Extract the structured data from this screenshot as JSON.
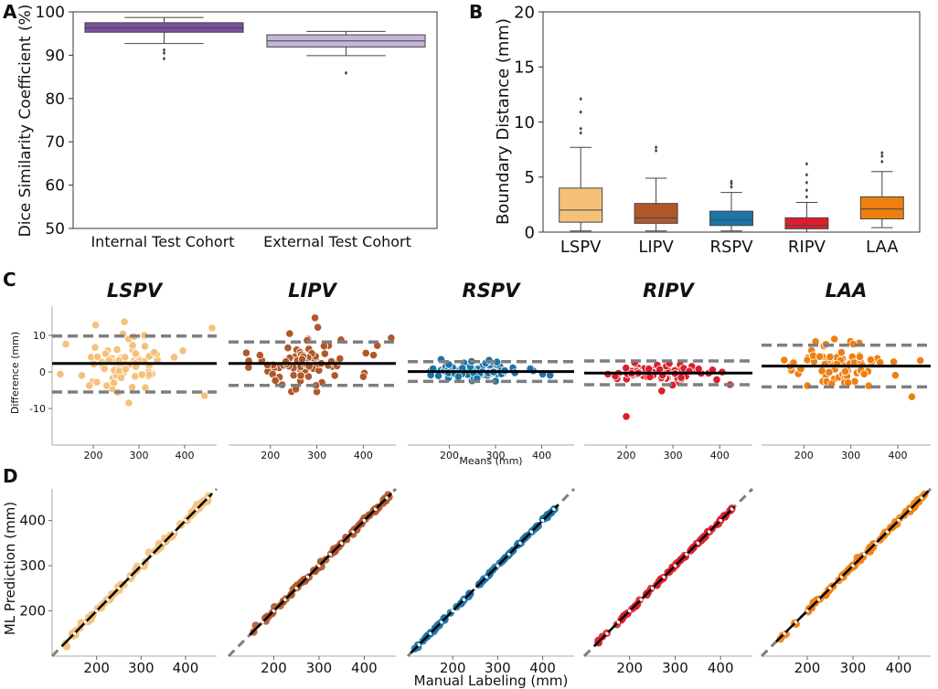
{
  "panels": {
    "a": "A",
    "b": "B",
    "c": "C",
    "d": "D"
  },
  "palette": {
    "LSPV": "#f5c17a",
    "LIPV": "#b0582a",
    "RSPV": "#1a75a8",
    "RIPV": "#dc1e2e",
    "LAA": "#ee800f",
    "internal": "#7a52a0",
    "external": "#c5b4da",
    "limits": "#7f7f7f",
    "mean": "#000000"
  },
  "chart_data": [
    {
      "id": "A",
      "type": "box",
      "ylabel": "Dice Similarity Coefficient (%)",
      "ylim": [
        50,
        100
      ],
      "yticks": [
        50,
        60,
        70,
        80,
        90,
        100
      ],
      "categories": [
        "Internal Test Cohort",
        "External Test Cohort"
      ],
      "boxes": [
        {
          "name": "Internal Test Cohort",
          "whisker_low": 92.7,
          "q1": 95.3,
          "median": 96.3,
          "q3": 97.5,
          "whisker_high": 98.7,
          "outliers": [
            91.2,
            90.5,
            89.2
          ]
        },
        {
          "name": "External Test Cohort",
          "whisker_low": 89.9,
          "q1": 91.9,
          "median": 93.3,
          "q3": 94.7,
          "whisker_high": 95.5,
          "outliers": [
            85.9
          ]
        }
      ]
    },
    {
      "id": "B",
      "type": "box",
      "ylabel": "Boundary Distance (mm)",
      "ylim": [
        0,
        20
      ],
      "yticks": [
        0,
        5,
        10,
        15,
        20
      ],
      "categories": [
        "LSPV",
        "LIPV",
        "RSPV",
        "RIPV",
        "LAA"
      ],
      "boxes": [
        {
          "name": "LSPV",
          "whisker_low": 0.1,
          "q1": 0.9,
          "median": 2.0,
          "q3": 4.0,
          "whisker_high": 7.7,
          "outliers": [
            9.0,
            9.4,
            10.9,
            12.1
          ]
        },
        {
          "name": "LIPV",
          "whisker_low": 0.1,
          "q1": 0.8,
          "median": 1.3,
          "q3": 2.6,
          "whisker_high": 4.9,
          "outliers": [
            7.4,
            7.7
          ]
        },
        {
          "name": "RSPV",
          "whisker_low": 0.1,
          "q1": 0.6,
          "median": 1.1,
          "q3": 1.9,
          "whisker_high": 3.6,
          "outliers": [
            4.1,
            4.4,
            4.6
          ]
        },
        {
          "name": "RIPV",
          "whisker_low": 0.0,
          "q1": 0.3,
          "median": 0.6,
          "q3": 1.3,
          "whisker_high": 2.7,
          "outliers": [
            3.2,
            3.8,
            4.5,
            5.2,
            6.2
          ]
        },
        {
          "name": "LAA",
          "whisker_low": 0.4,
          "q1": 1.2,
          "median": 2.1,
          "q3": 3.2,
          "whisker_high": 5.5,
          "outliers": [
            6.4,
            6.9,
            7.2
          ]
        }
      ]
    },
    {
      "id": "C",
      "type": "scatter",
      "kind": "bland-altman",
      "ylabel": "Difference (mm)",
      "xlabel": "Means (mm)",
      "ylim": [
        -20,
        18
      ],
      "xlim": [
        110,
        470
      ],
      "yticks": [
        -10,
        0,
        10
      ],
      "xticks": [
        200,
        300,
        400
      ],
      "subplots": [
        {
          "name": "LSPV",
          "mean": 2.3,
          "upper": 9.8,
          "lower": -5.5,
          "n": 72,
          "seed": 11,
          "spread": 3.6,
          "extra": [
            [
              278,
              -8.5
            ],
            [
              205,
              12.8
            ],
            [
              265,
              10.4
            ],
            [
              252,
              6.1
            ],
            [
              460,
              12.0
            ],
            [
              128,
              -0.6
            ],
            [
              396,
              5.8
            ],
            [
              285,
              -4.2
            ]
          ]
        },
        {
          "name": "LIPV",
          "mean": 2.3,
          "upper": 8.2,
          "lower": -3.7,
          "n": 72,
          "seed": 22,
          "spread": 2.8,
          "extra": [
            [
              296,
              14.8
            ],
            [
              302,
              12.2
            ],
            [
              279,
              8.6
            ],
            [
              352,
              8.8
            ],
            [
              460,
              9.3
            ],
            [
              153,
              1.2
            ],
            [
              400,
              -1.3
            ]
          ]
        },
        {
          "name": "RSPV",
          "mean": 0.1,
          "upper": 2.8,
          "lower": -2.6,
          "n": 72,
          "seed": 33,
          "spread": 1.0,
          "extra": [
            [
              286,
              3.2
            ],
            [
              303,
              2.7
            ],
            [
              199,
              2.0
            ],
            [
              260,
              -1.8
            ],
            [
              402,
              -0.6
            ]
          ]
        },
        {
          "name": "RIPV",
          "mean": -0.3,
          "upper": 3.0,
          "lower": -3.5,
          "n": 72,
          "seed": 44,
          "spread": 1.0,
          "extra": [
            [
              200,
              -12.2
            ],
            [
              276,
              -5.2
            ],
            [
              218,
              2.5
            ],
            [
              422,
              -3.5
            ],
            [
              355,
              0.8
            ]
          ]
        },
        {
          "name": "LAA",
          "mean": 1.6,
          "upper": 7.3,
          "lower": -4.1,
          "n": 72,
          "seed": 55,
          "spread": 2.7,
          "extra": [
            [
              430,
              -6.8
            ],
            [
              265,
              9.0
            ],
            [
              225,
              8.3
            ],
            [
              338,
              -3.8
            ],
            [
              448,
              3.1
            ],
            [
              178,
              2.5
            ],
            [
              305,
              7.6
            ]
          ]
        }
      ]
    },
    {
      "id": "D",
      "type": "scatter",
      "kind": "correlation",
      "ylabel": "ML Prediction (mm)",
      "xlabel": "Manual Labeling (mm)",
      "xlim": [
        100,
        470
      ],
      "ylim": [
        100,
        470
      ],
      "xticks": [
        200,
        300,
        400
      ],
      "yticks": [
        200,
        300,
        400
      ],
      "subplots": [
        {
          "name": "LSPV",
          "n": 80,
          "seed": 101,
          "noise": 4,
          "xmin": 130,
          "xmax": 455
        },
        {
          "name": "LIPV",
          "n": 80,
          "seed": 202,
          "noise": 3,
          "xmin": 155,
          "xmax": 455
        },
        {
          "name": "RSPV",
          "n": 80,
          "seed": 303,
          "noise": 1.5,
          "xmin": 115,
          "xmax": 430
        },
        {
          "name": "RIPV",
          "n": 80,
          "seed": 404,
          "noise": 1.5,
          "xmin": 130,
          "xmax": 425
        },
        {
          "name": "LAA",
          "n": 80,
          "seed": 505,
          "noise": 3,
          "xmin": 140,
          "xmax": 460
        }
      ]
    }
  ]
}
